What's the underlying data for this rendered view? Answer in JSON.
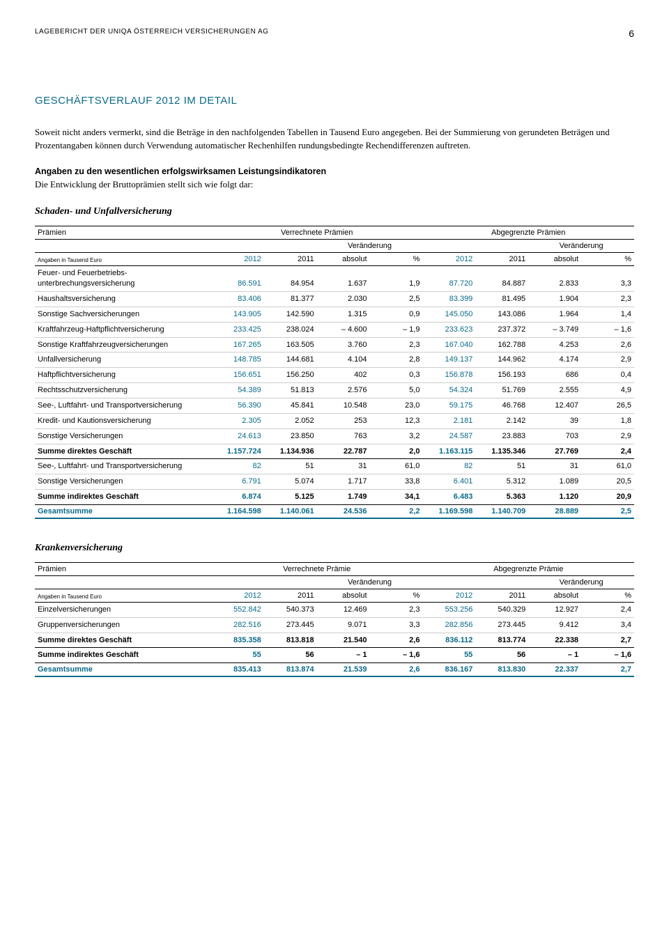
{
  "header": {
    "running_title": "LAGEBERICHT DER UNIQA ÖSTERREICH VERSICHERUNGEN AG",
    "page_number": "6"
  },
  "colors": {
    "accent": "#0a6a8a",
    "text": "#000000",
    "rule_light": "#cccccc"
  },
  "section": {
    "title": "GESCHÄFTSVERLAUF 2012 IM DETAIL",
    "para1": "Soweit nicht anders vermerkt, sind die Beträge in den nachfolgenden Tabellen in Tausend Euro angegeben. Bei der Summierung von gerundeten Beträgen und Prozentangaben können durch Verwendung automatischer Rechenhilfen rundungsbedingte Rechendifferenzen auftreten.",
    "para2_lead": "Angaben zu den wesentlichen erfolgswirksamen Leistungsindikatoren",
    "para2_rest": "Die Entwicklung der Bruttoprämien stellt sich wie folgt dar:"
  },
  "table1": {
    "caption": "Schaden- und Unfallversicherung",
    "h_praemien": "Prämien",
    "h_verrechnete": "Verrechnete Prämien",
    "h_abgegrenzte": "Abgegrenzte Prämien",
    "h_veraenderung": "Veränderung",
    "h_units": "Angaben in Tausend Euro",
    "h_2012": "2012",
    "h_2011": "2011",
    "h_absolut": "absolut",
    "h_pct": "%",
    "rows": [
      {
        "label": "Feuer- und Feuerbetriebs­unterbrechungsversicherung",
        "v": [
          "86.591",
          "84.954",
          "1.637",
          "1,9",
          "87.720",
          "84.887",
          "2.833",
          "3,3"
        ]
      },
      {
        "label": "Haushaltsversicherung",
        "v": [
          "83.406",
          "81.377",
          "2.030",
          "2,5",
          "83.399",
          "81.495",
          "1.904",
          "2,3"
        ]
      },
      {
        "label": "Sonstige Sachversicherungen",
        "v": [
          "143.905",
          "142.590",
          "1.315",
          "0,9",
          "145.050",
          "143.086",
          "1.964",
          "1,4"
        ]
      },
      {
        "label": "Kraftfahrzeug-Haftpflichtversicherung",
        "v": [
          "233.425",
          "238.024",
          "– 4.600",
          "– 1,9",
          "233.623",
          "237.372",
          "– 3.749",
          "– 1,6"
        ]
      },
      {
        "label": "Sonstige Kraftfahrzeugversicherungen",
        "v": [
          "167.265",
          "163.505",
          "3.760",
          "2,3",
          "167.040",
          "162.788",
          "4.253",
          "2,6"
        ]
      },
      {
        "label": "Unfallversicherung",
        "v": [
          "148.785",
          "144.681",
          "4.104",
          "2,8",
          "149.137",
          "144.962",
          "4.174",
          "2,9"
        ]
      },
      {
        "label": "Haftpflichtversicherung",
        "v": [
          "156.651",
          "156.250",
          "402",
          "0,3",
          "156.878",
          "156.193",
          "686",
          "0,4"
        ]
      },
      {
        "label": "Rechtsschutzversicherung",
        "v": [
          "54.389",
          "51.813",
          "2.576",
          "5,0",
          "54.324",
          "51.769",
          "2.555",
          "4,9"
        ]
      },
      {
        "label": "See-, Luftfahrt- und Transportversicherung",
        "v": [
          "56.390",
          "45.841",
          "10.548",
          "23,0",
          "59.175",
          "46.768",
          "12.407",
          "26,5"
        ]
      },
      {
        "label": "Kredit- und Kautionsversicherung",
        "v": [
          "2.305",
          "2.052",
          "253",
          "12,3",
          "2.181",
          "2.142",
          "39",
          "1,8"
        ]
      },
      {
        "label": "Sonstige Versicherungen",
        "v": [
          "24.613",
          "23.850",
          "763",
          "3,2",
          "24.587",
          "23.883",
          "703",
          "2,9"
        ]
      }
    ],
    "sum_direkt": {
      "label": "Summe direktes Geschäft",
      "v": [
        "1.157.724",
        "1.134.936",
        "22.787",
        "2,0",
        "1.163.115",
        "1.135.346",
        "27.769",
        "2,4"
      ]
    },
    "rows2": [
      {
        "label": "See-, Luftfahrt- und Transportversicherung",
        "v": [
          "82",
          "51",
          "31",
          "61,0",
          "82",
          "51",
          "31",
          "61,0"
        ]
      },
      {
        "label": "Sonstige Versicherungen",
        "v": [
          "6.791",
          "5.074",
          "1.717",
          "33,8",
          "6.401",
          "5.312",
          "1.089",
          "20,5"
        ]
      }
    ],
    "sum_indirekt": {
      "label": "Summe indirektes Geschäft",
      "v": [
        "6.874",
        "5.125",
        "1.749",
        "34,1",
        "6.483",
        "5.363",
        "1.120",
        "20,9"
      ]
    },
    "total": {
      "label": "Gesamtsumme",
      "v": [
        "1.164.598",
        "1.140.061",
        "24.536",
        "2,2",
        "1.169.598",
        "1.140.709",
        "28.889",
        "2,5"
      ]
    }
  },
  "table2": {
    "caption": "Krankenversicherung",
    "h_praemien": "Prämien",
    "h_verrechnete": "Verrechnete Prämie",
    "h_abgegrenzte": "Abgegrenzte Prämie",
    "h_veraenderung": "Veränderung",
    "h_units": "Angaben in Tausend Euro",
    "h_2012": "2012",
    "h_2011": "2011",
    "h_absolut": "absolut",
    "h_pct": "%",
    "rows": [
      {
        "label": "Einzelversicherungen",
        "v": [
          "552.842",
          "540.373",
          "12.469",
          "2,3",
          "553.256",
          "540.329",
          "12.927",
          "2,4"
        ]
      },
      {
        "label": "Gruppenversicherungen",
        "v": [
          "282.516",
          "273.445",
          "9.071",
          "3,3",
          "282.856",
          "273.445",
          "9.412",
          "3,4"
        ]
      }
    ],
    "sum_direkt": {
      "label": "Summe direktes Geschäft",
      "v": [
        "835.358",
        "813.818",
        "21.540",
        "2,6",
        "836.112",
        "813.774",
        "22.338",
        "2,7"
      ]
    },
    "sum_indirekt": {
      "label": "Summe indirektes Geschäft",
      "v": [
        "55",
        "56",
        "– 1",
        "– 1,6",
        "55",
        "56",
        "– 1",
        "– 1,6"
      ]
    },
    "total": {
      "label": "Gesamtsumme",
      "v": [
        "835.413",
        "813.874",
        "21.539",
        "2,6",
        "836.167",
        "813.830",
        "22.337",
        "2,7"
      ]
    }
  }
}
